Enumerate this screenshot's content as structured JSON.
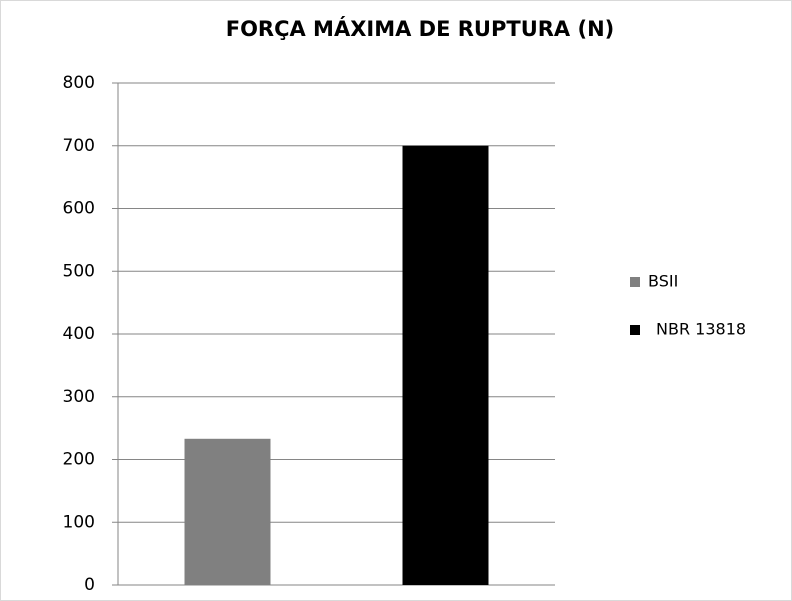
{
  "chart_data": {
    "type": "bar",
    "title": "FORÇA MÁXIMA DE RUPTURA (N)",
    "categories": [
      null
    ],
    "series": [
      {
        "name": "BSII",
        "color": "#808080",
        "values": [
          233
        ]
      },
      {
        "name": "NBR 13818",
        "color": "#000000",
        "values": [
          700
        ]
      }
    ],
    "ylim": [
      0,
      800
    ],
    "yticks": [
      0,
      100,
      200,
      300,
      400,
      500,
      600,
      700,
      800
    ],
    "grid": true,
    "legend": "right"
  }
}
